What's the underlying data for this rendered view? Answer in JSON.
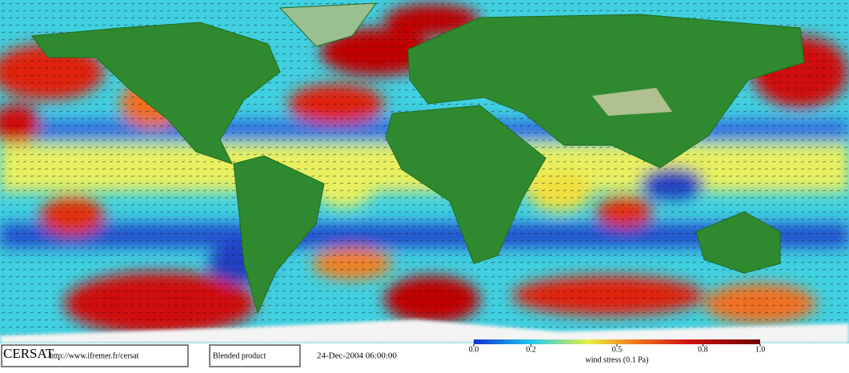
{
  "footer": {
    "logo": "CERSAT",
    "url": "http://www.ifremer.fr/cersat",
    "product": "Blended product",
    "date": "24-Dec-2004 06:00:00"
  },
  "colorbar": {
    "label": "wind stress (0.1 Pa)",
    "range": [
      0,
      1
    ],
    "ticks": [
      {
        "value": 0,
        "label": "0.0"
      },
      {
        "value": 0.2,
        "label": "0.2"
      },
      {
        "value": 0.5,
        "label": "0.5"
      },
      {
        "value": 0.8,
        "label": "0.8"
      },
      {
        "value": 1,
        "label": "1.0"
      }
    ]
  }
}
